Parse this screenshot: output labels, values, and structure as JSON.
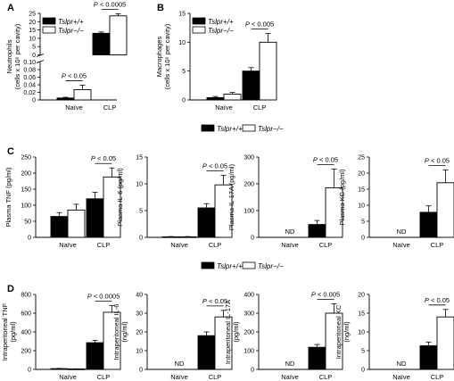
{
  "figure": {
    "legend_wt": "Tslpr+/+",
    "legend_ko": "Tslpr−/−",
    "legend_color_wt": "#000000",
    "legend_color_ko": "#ffffff"
  },
  "chart_data": [
    {
      "type": "bar",
      "panel_label": "A",
      "title": "",
      "categories": [
        "Naïve",
        "CLP"
      ],
      "ylabel": "Neutrophils (cells x 10⁶ per cavity)",
      "broken_axis": true,
      "lower_ylim": [
        0,
        0.1
      ],
      "lower_ticks": [
        "0",
        "0.02",
        "0.04",
        "0.06",
        "0.08",
        "0.10"
      ],
      "upper_ylim": [
        0,
        25
      ],
      "upper_ticks": [
        "0",
        "5",
        "10",
        "15",
        "20",
        "25"
      ],
      "series": [
        {
          "name": "Tslpr+/+",
          "values": [
            0.005,
            13
          ],
          "errors": [
            0.002,
            0.8
          ]
        },
        {
          "name": "Tslpr−/−",
          "values": [
            0.027,
            23.5
          ],
          "errors": [
            0.012,
            1.3
          ]
        }
      ],
      "legend_position": "top-left",
      "annotations": [
        {
          "text": "P < 0.05",
          "category": "Naïve"
        },
        {
          "text": "P < 0.0005",
          "category": "CLP"
        }
      ]
    },
    {
      "type": "bar",
      "panel_label": "B",
      "title": "",
      "categories": [
        "Naïve",
        "CLP"
      ],
      "ylabel": "Macrophages (cells x 10⁶ per cavity)",
      "ylim": [
        0,
        15
      ],
      "yticks": [
        "0",
        "5",
        "10",
        "15"
      ],
      "series": [
        {
          "name": "Tslpr+/+",
          "values": [
            0.4,
            5
          ],
          "errors": [
            0.2,
            0.6
          ]
        },
        {
          "name": "Tslpr−/−",
          "values": [
            1,
            10
          ],
          "errors": [
            0.3,
            1.5
          ]
        }
      ],
      "legend_position": "top-left",
      "annotations": [
        {
          "text": "P < 0.005",
          "category": "CLP"
        }
      ]
    },
    {
      "type": "bar",
      "panel_label": "C",
      "title": "",
      "categories": [
        "Naïve",
        "CLP"
      ],
      "ylabel": "Plasma TNF (pg/ml)",
      "ylim": [
        0,
        250
      ],
      "yticks": [
        "0",
        "50",
        "100",
        "150",
        "200",
        "250"
      ],
      "series": [
        {
          "name": "Tslpr+/+",
          "values": [
            65,
            120
          ],
          "errors": [
            12,
            20
          ]
        },
        {
          "name": "Tslpr−/−",
          "values": [
            85,
            188
          ],
          "errors": [
            18,
            28
          ]
        }
      ],
      "annotations": [
        {
          "text": "P < 0.05",
          "category": "CLP"
        }
      ]
    },
    {
      "type": "bar",
      "panel_label": "",
      "title": "",
      "categories": [
        "Naïve",
        "CLP"
      ],
      "ylabel": "Plasma IL-6 (pg/ml)",
      "ylim": [
        0,
        15
      ],
      "yticks": [
        "0",
        "5",
        "10",
        "15"
      ],
      "series": [
        {
          "name": "Tslpr+/+",
          "values": [
            0.1,
            5.5
          ],
          "errors": [
            0.05,
            0.8
          ]
        },
        {
          "name": "Tslpr−/−",
          "values": [
            0.1,
            9.8
          ],
          "errors": [
            0.05,
            1.8
          ]
        }
      ],
      "annotations": [
        {
          "text": "P < 0.05",
          "category": "CLP"
        }
      ]
    },
    {
      "type": "bar",
      "panel_label": "",
      "title": "",
      "categories": [
        "Naïve",
        "CLP"
      ],
      "ylabel": "Plasma IL-17A (pg/ml)",
      "ylim": [
        0,
        300
      ],
      "yticks": [
        "0",
        "100",
        "200",
        "300"
      ],
      "series": [
        {
          "name": "Tslpr+/+",
          "values": [
            null,
            48
          ],
          "errors": [
            null,
            15
          ]
        },
        {
          "name": "Tslpr−/−",
          "values": [
            null,
            185
          ],
          "errors": [
            null,
            70
          ]
        }
      ],
      "naive_label": "ND",
      "annotations": [
        {
          "text": "P < 0.05",
          "category": "CLP"
        }
      ]
    },
    {
      "type": "bar",
      "panel_label": "",
      "title": "",
      "categories": [
        "Naïve",
        "CLP"
      ],
      "ylabel": "Plasma KC (pg/ml)",
      "ylim": [
        0,
        25
      ],
      "yticks": [
        "0",
        "5",
        "10",
        "15",
        "20",
        "25"
      ],
      "series": [
        {
          "name": "Tslpr+/+",
          "values": [
            null,
            7.8
          ],
          "errors": [
            null,
            2
          ]
        },
        {
          "name": "Tslpr−/−",
          "values": [
            null,
            17
          ],
          "errors": [
            null,
            4
          ]
        }
      ],
      "naive_label": "ND",
      "annotations": [
        {
          "text": "P < 0.05",
          "category": "CLP"
        }
      ]
    },
    {
      "type": "bar",
      "panel_label": "D",
      "title": "",
      "categories": [
        "Naïve",
        "CLP"
      ],
      "ylabel": "Intraperitoneal TNF (pg/ml)",
      "ylim": [
        0,
        800
      ],
      "yticks": [
        "0",
        "200",
        "400",
        "600",
        "800"
      ],
      "series": [
        {
          "name": "Tslpr+/+",
          "values": [
            8,
            285
          ],
          "errors": [
            3,
            25
          ]
        },
        {
          "name": "Tslpr−/−",
          "values": [
            5,
            610
          ],
          "errors": [
            2,
            70
          ]
        }
      ],
      "annotations": [
        {
          "text": "P < 0.0005",
          "category": "CLP"
        }
      ]
    },
    {
      "type": "bar",
      "panel_label": "",
      "title": "",
      "categories": [
        "Naïve",
        "CLP"
      ],
      "ylabel": "Intraperitoneal IL-6 (ng/ml)",
      "ylim": [
        0,
        40
      ],
      "yticks": [
        "0",
        "10",
        "20",
        "30",
        "40"
      ],
      "series": [
        {
          "name": "Tslpr+/+",
          "values": [
            null,
            18
          ],
          "errors": [
            null,
            2
          ]
        },
        {
          "name": "Tslpr−/−",
          "values": [
            null,
            28
          ],
          "errors": [
            null,
            3.5
          ]
        }
      ],
      "naive_label": "ND",
      "annotations": [
        {
          "text": "P < 0.05",
          "category": "CLP"
        }
      ]
    },
    {
      "type": "bar",
      "panel_label": "",
      "title": "",
      "categories": [
        "Naïve",
        "CLP"
      ],
      "ylabel": "Intraperitoneal IL-17A (pg/ml)",
      "ylim": [
        0,
        400
      ],
      "yticks": [
        "0",
        "100",
        "200",
        "300",
        "400"
      ],
      "series": [
        {
          "name": "Tslpr+/+",
          "values": [
            null,
            118
          ],
          "errors": [
            null,
            15
          ]
        },
        {
          "name": "Tslpr−/−",
          "values": [
            null,
            300
          ],
          "errors": [
            null,
            50
          ]
        }
      ],
      "naive_label": "ND",
      "annotations": [
        {
          "text": "P < 0.005",
          "category": "CLP"
        }
      ]
    },
    {
      "type": "bar",
      "panel_label": "",
      "title": "",
      "categories": [
        "Naïve",
        "CLP"
      ],
      "ylabel": "Intraperitoneal KC (ng/ml)",
      "ylim": [
        0,
        20
      ],
      "yticks": [
        "0",
        "5",
        "10",
        "15",
        "20"
      ],
      "series": [
        {
          "name": "Tslpr+/+",
          "values": [
            null,
            6.3
          ],
          "errors": [
            null,
            1
          ]
        },
        {
          "name": "Tslpr−/−",
          "values": [
            null,
            14
          ],
          "errors": [
            null,
            2
          ]
        }
      ],
      "naive_label": "ND",
      "annotations": [
        {
          "text": "P < 0.05",
          "category": "CLP"
        }
      ]
    }
  ]
}
